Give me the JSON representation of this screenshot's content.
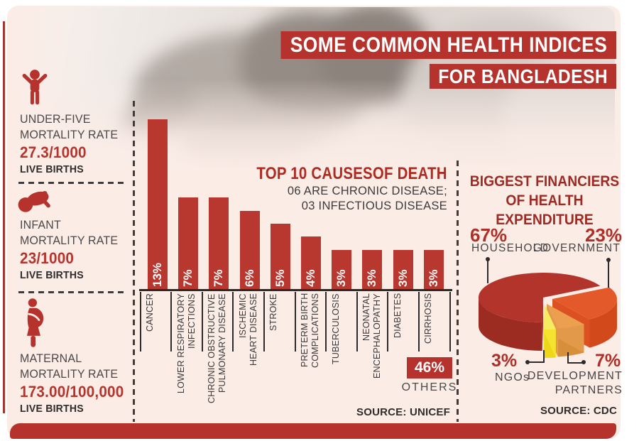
{
  "banner": {
    "line1": "SOME COMMON HEALTH INDICES",
    "line2": "FOR BANGLADESH"
  },
  "sidebar": {
    "stats": [
      {
        "icon": "child-icon",
        "label_line1": "UNDER-FIVE",
        "label_line2": "MORTALITY RATE",
        "value": "27.3/1000",
        "unit": "LIVE BIRTHS"
      },
      {
        "icon": "baby-icon",
        "label_line1": "INFANT",
        "label_line2": "MORTALITY RATE",
        "value": "23/1000",
        "unit": "LIVE BIRTHS"
      },
      {
        "icon": "pregnant-woman-icon",
        "label_line1": "MATERNAL",
        "label_line2": "MORTALITY RATE",
        "value": "173.00/100,000",
        "unit": "LIVE BIRTHS"
      }
    ]
  },
  "bar_section": {
    "title": "TOP 10 CAUSESOF DEATH",
    "subtitle_line1": "06 ARE CHRONIC DISEASE;",
    "subtitle_line2": "03 INFECTIOUS DISEASE",
    "others_label": "OTHERS",
    "source": "SOURCE: UNICEF"
  },
  "pie_section": {
    "title_line1": "BIGGEST FINANCIERS",
    "title_line2": "OF HEALTH EXPENDITURE",
    "source": "SOURCE: CDC"
  },
  "chart_data": [
    {
      "type": "bar",
      "title": "TOP 10 CAUSESOF DEATH",
      "subtitle": "06 ARE CHRONIC DISEASE; 03 INFECTIOUS DISEASE",
      "categories": [
        "CANCER",
        "LOWER RESPIRATORY\nINFECTIONS",
        "CHRONIC OBSTRUCTIVE\nPULMONARY DISEASE",
        "ISCHEMIC\nHEART DISEASE",
        "STROKE",
        "PRETERM BIRTH\nCOMPLICATIONS",
        "TUBERCULOSIS",
        "NEONATAL\nENCEPHALOPATHY",
        "DIABETES",
        "CIRRHOSIS"
      ],
      "values": [
        13,
        7,
        7,
        6,
        5,
        4,
        3,
        3,
        3,
        3
      ],
      "unit": "%",
      "others": {
        "label": "OTHERS",
        "value": 46
      },
      "bar_color": "#b8382f",
      "source": "UNICEF",
      "ylim": [
        0,
        14
      ],
      "grid": false,
      "xlabel": "",
      "ylabel": ""
    },
    {
      "type": "pie",
      "style": "3d-exploded",
      "title": "BIGGEST FINANCIERS OF HEALTH EXPENDITURE",
      "slices": [
        {
          "label": "HOUSEHOLD",
          "display_label": "HOUSEHOLD",
          "value": 67,
          "color": "#b2342b",
          "side_color": "#9c2b22",
          "cut_color": "#a72f26"
        },
        {
          "label": "GOVERNMENT",
          "display_label": "GOVERNMENT",
          "value": 23,
          "color": "#e4592a",
          "side_color": "#d2491c",
          "cut_color": "#dc5122"
        },
        {
          "label": "DEVELOPMENT PARTNERS",
          "display_label": "DEVELOPMENT\nPARTNERS",
          "value": 7,
          "color": "#eca04f",
          "side_color": "#d88f3a",
          "cut_color": "#e3994a"
        },
        {
          "label": "NGOs",
          "display_label": "NGOs",
          "value": 3,
          "color": "#f6ec5f",
          "side_color": "#eed71a",
          "cut_color": "#f4e430"
        }
      ],
      "start_angle_deg": -28,
      "clockwise_order": [
        "GOVERNMENT",
        "DEVELOPMENT PARTNERS",
        "NGOs",
        "HOUSEHOLD"
      ],
      "legend_position": "callouts",
      "source": "CDC"
    }
  ],
  "colors": {
    "accent_red": "#b5332c",
    "dark_red_text": "#9e2b23",
    "dark_text": "#3b393a",
    "background_pink": "#fbece6",
    "pct_text_red": "#ae2f27"
  }
}
